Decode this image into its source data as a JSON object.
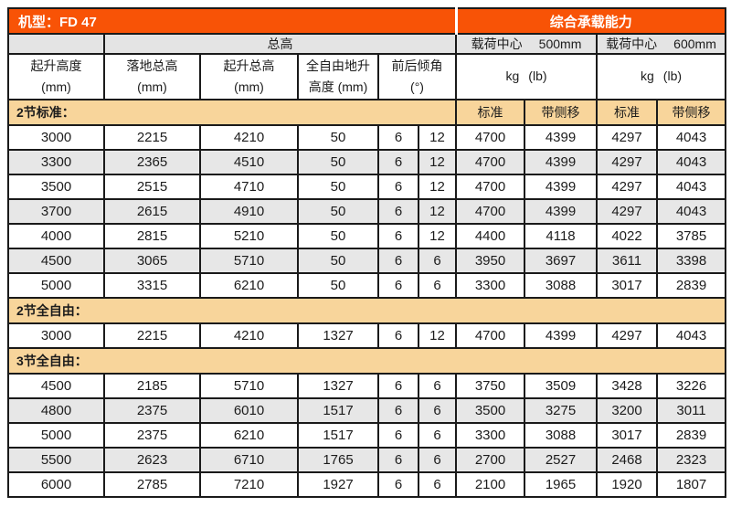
{
  "colors": {
    "orange": "#F85306",
    "tan": "#F8D59B",
    "gray_header": "#E4E4E4",
    "row_alt": "#E7E7E7",
    "border": "#1A1A1A",
    "text": "#3C3C3C",
    "header_text": "#FFFFFF"
  },
  "title": {
    "model": "机型：FD 47",
    "capacity": "综合承载能力"
  },
  "header": {
    "overall_height": "总高",
    "load_center_500": {
      "label": "载荷中心",
      "value": "500mm"
    },
    "load_center_600": {
      "label": "载荷中心",
      "value": "600mm"
    },
    "columns": {
      "lift_height": {
        "line1": "起升高度",
        "line2": "(mm)"
      },
      "lowered_height": {
        "line1": "落地总高",
        "line2": "(mm)"
      },
      "extended_height": {
        "line1": "起升总高",
        "line2": "(mm)"
      },
      "free_lift": {
        "line1": "全自由地升",
        "line2": "高度 (mm)"
      },
      "tilt": {
        "line1": "前后倾角",
        "line2": "(°)"
      },
      "unit_kg": "kg",
      "unit_lb": "(lb)"
    }
  },
  "sections": [
    {
      "label": "2节标准：",
      "sub_labels": [
        "标准",
        "带侧移",
        "标准",
        "带侧移"
      ],
      "rows": [
        [
          3000,
          2215,
          4210,
          50,
          6,
          12,
          4700,
          4399,
          4297,
          4043
        ],
        [
          3300,
          2365,
          4510,
          50,
          6,
          12,
          4700,
          4399,
          4297,
          4043
        ],
        [
          3500,
          2515,
          4710,
          50,
          6,
          12,
          4700,
          4399,
          4297,
          4043
        ],
        [
          3700,
          2615,
          4910,
          50,
          6,
          12,
          4700,
          4399,
          4297,
          4043
        ],
        [
          4000,
          2815,
          5210,
          50,
          6,
          12,
          4400,
          4118,
          4022,
          3785
        ],
        [
          4500,
          3065,
          5710,
          50,
          6,
          6,
          3950,
          3697,
          3611,
          3398
        ],
        [
          5000,
          3315,
          6210,
          50,
          6,
          6,
          3300,
          3088,
          3017,
          2839
        ]
      ]
    },
    {
      "label": "2节全自由：",
      "sub_labels": null,
      "rows": [
        [
          3000,
          2215,
          4210,
          1327,
          6,
          12,
          4700,
          4399,
          4297,
          4043
        ]
      ]
    },
    {
      "label": "3节全自由：",
      "sub_labels": null,
      "rows": [
        [
          4500,
          2185,
          5710,
          1327,
          6,
          6,
          3750,
          3509,
          3428,
          3226
        ],
        [
          4800,
          2375,
          6010,
          1517,
          6,
          6,
          3500,
          3275,
          3200,
          3011
        ],
        [
          5000,
          2375,
          6210,
          1517,
          6,
          6,
          3300,
          3088,
          3017,
          2839
        ],
        [
          5500,
          2623,
          6710,
          1765,
          6,
          6,
          2700,
          2527,
          2468,
          2323
        ],
        [
          6000,
          2785,
          7210,
          1927,
          6,
          6,
          2100,
          1965,
          1920,
          1807
        ]
      ]
    }
  ]
}
